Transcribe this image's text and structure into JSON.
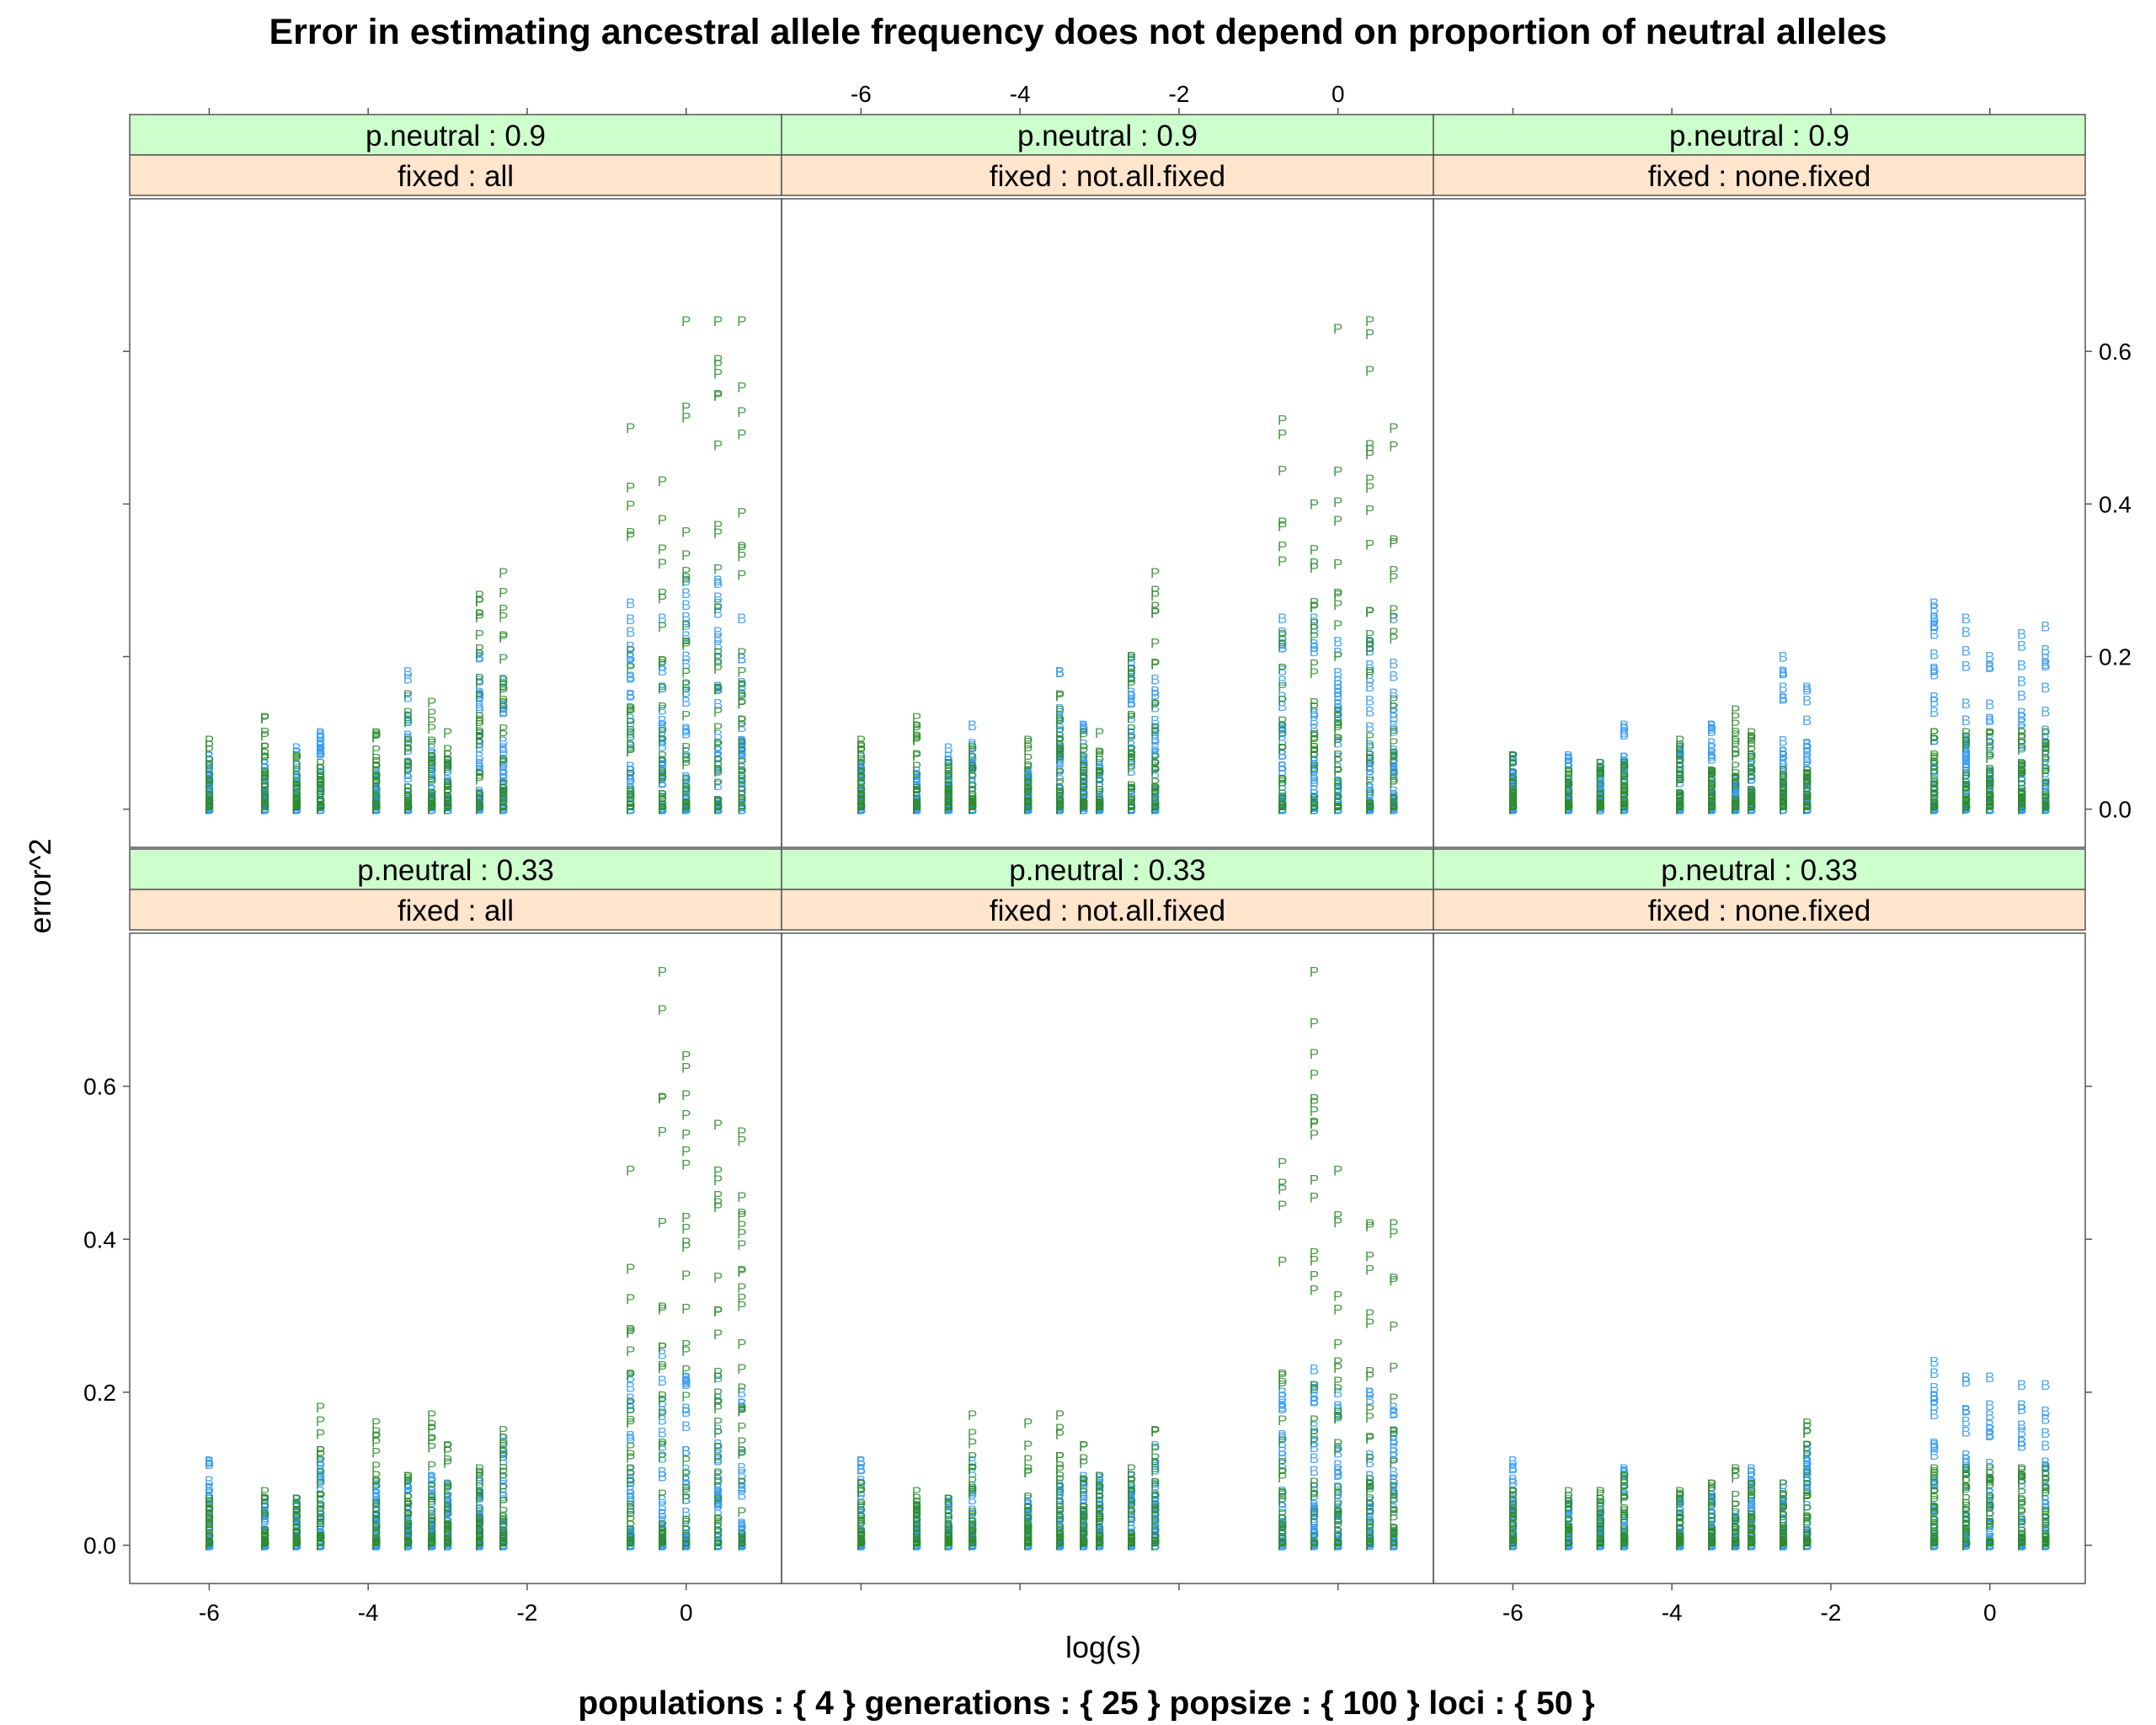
{
  "chart_data": {
    "type": "scatter",
    "title": "Error in estimating ancestral allele frequency does not depend on proportion of neutral alleles",
    "xlabel": "log(s)",
    "ylabel": "error^2",
    "footer": "populations : { 4 } generations : { 25 } popsize : { 100 } loci : { 50 }",
    "xlim": [
      -7.0,
      1.2
    ],
    "ylim": [
      -0.05,
      0.8
    ],
    "x_ticks": [
      -6,
      -4,
      -2,
      0
    ],
    "y_ticks": [
      0.0,
      0.2,
      0.4,
      0.6
    ],
    "x_tick_labels": [
      "-6",
      "-4",
      "-2",
      "0"
    ],
    "y_tick_labels": [
      "0.0",
      "0.2",
      "0.4",
      "0.6"
    ],
    "x_positions": [
      -6.0,
      -5.3,
      -4.9,
      -4.6,
      -3.9,
      -3.5,
      -3.2,
      -3.0,
      -2.6,
      -2.3,
      -0.7,
      -0.3,
      0.0,
      0.4,
      0.7
    ],
    "series": [
      {
        "name": "P",
        "color": "#2e8b2e",
        "marker_label": "P"
      },
      {
        "name": "B",
        "color": "#3399ee",
        "marker_label": "B"
      }
    ],
    "panels": [
      {
        "row": 0,
        "col": 0,
        "p_neutral_strip": "p.neutral : 0.9",
        "fixed_strip": "fixed : all",
        "p_max": [
          0.09,
          0.12,
          0.07,
          0.06,
          0.1,
          0.15,
          0.14,
          0.1,
          0.28,
          0.31,
          0.5,
          0.43,
          0.64,
          0.64,
          0.64
        ],
        "b_max": [
          0.07,
          0.06,
          0.08,
          0.1,
          0.05,
          0.18,
          0.08,
          0.06,
          0.2,
          0.17,
          0.27,
          0.25,
          0.3,
          0.3,
          0.25
        ]
      },
      {
        "row": 0,
        "col": 1,
        "p_neutral_strip": "p.neutral : 0.9",
        "fixed_strip": "fixed : not.all.fixed",
        "p_max": [
          0.09,
          0.12,
          0.06,
          0.08,
          0.09,
          0.15,
          0.1,
          0.1,
          0.2,
          0.31,
          0.51,
          0.4,
          0.63,
          0.64,
          0.5
        ],
        "b_max": [
          0.07,
          0.05,
          0.08,
          0.11,
          0.05,
          0.18,
          0.11,
          0.06,
          0.2,
          0.17,
          0.25,
          0.25,
          0.22,
          0.22,
          0.25
        ]
      },
      {
        "row": 0,
        "col": 2,
        "p_neutral_strip": "p.neutral : 0.9",
        "fixed_strip": "fixed : none.fixed",
        "p_max": [
          0.07,
          0.05,
          0.06,
          0.06,
          0.09,
          0.05,
          0.13,
          0.1,
          0.05,
          0.05,
          0.1,
          0.1,
          0.1,
          0.1,
          0.1
        ],
        "b_max": [
          0.07,
          0.07,
          0.06,
          0.11,
          0.08,
          0.11,
          0.04,
          0.07,
          0.2,
          0.16,
          0.27,
          0.25,
          0.2,
          0.23,
          0.24
        ]
      },
      {
        "row": 1,
        "col": 0,
        "p_neutral_strip": "p.neutral : 0.33",
        "fixed_strip": "fixed : all",
        "p_max": [
          0.06,
          0.07,
          0.06,
          0.18,
          0.16,
          0.09,
          0.17,
          0.13,
          0.1,
          0.15,
          0.49,
          0.75,
          0.64,
          0.55,
          0.54
        ],
        "b_max": [
          0.11,
          0.06,
          0.06,
          0.11,
          0.08,
          0.08,
          0.09,
          0.08,
          0.09,
          0.14,
          0.22,
          0.25,
          0.22,
          0.22,
          0.2
        ]
      },
      {
        "row": 1,
        "col": 1,
        "p_neutral_strip": "p.neutral : 0.33",
        "fixed_strip": "fixed : not.all.fixed",
        "p_max": [
          0.08,
          0.07,
          0.06,
          0.17,
          0.16,
          0.17,
          0.13,
          0.09,
          0.1,
          0.15,
          0.5,
          0.75,
          0.49,
          0.42,
          0.42
        ],
        "b_max": [
          0.11,
          0.05,
          0.06,
          0.11,
          0.06,
          0.08,
          0.09,
          0.09,
          0.09,
          0.13,
          0.2,
          0.23,
          0.2,
          0.2,
          0.18
        ]
      },
      {
        "row": 1,
        "col": 2,
        "p_neutral_strip": "p.neutral : 0.33",
        "fixed_strip": "fixed : none.fixed",
        "p_max": [
          0.07,
          0.07,
          0.07,
          0.09,
          0.07,
          0.08,
          0.1,
          0.08,
          0.08,
          0.16,
          0.1,
          0.1,
          0.1,
          0.1,
          0.1
        ],
        "b_max": [
          0.11,
          0.06,
          0.06,
          0.1,
          0.06,
          0.07,
          0.04,
          0.1,
          0.08,
          0.13,
          0.24,
          0.22,
          0.22,
          0.21,
          0.21
        ]
      }
    ],
    "grid": false,
    "strip_colors": {
      "p_neutral": "#ccffcc",
      "fixed": "#ffe5cc"
    }
  }
}
